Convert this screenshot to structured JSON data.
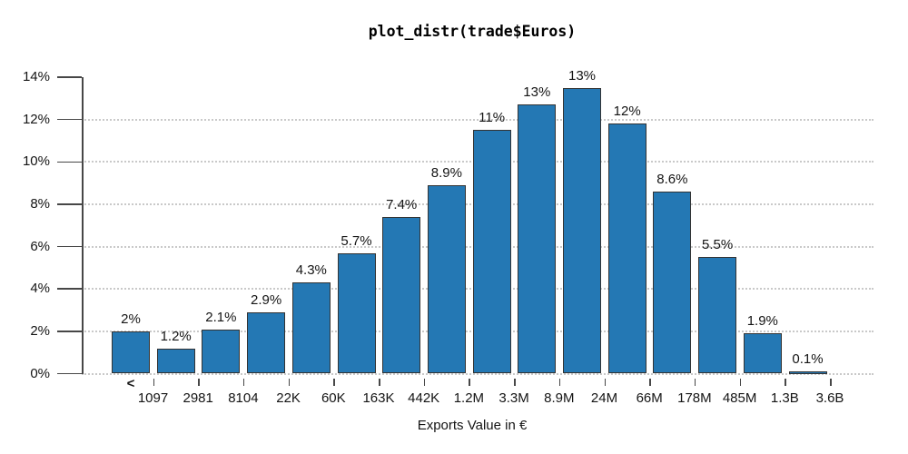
{
  "colors": {
    "bar_fill": "#2478b4",
    "bar_border": "#333333",
    "axis": "#474747",
    "grid": "#c9c9c9",
    "text": "#141414",
    "background": "#ffffff"
  },
  "chart_data": {
    "type": "bar",
    "title": "plot_distr(trade$Euros)",
    "xlabel": "Exports Value in €",
    "ylabel": "",
    "ylim": [
      0,
      14
    ],
    "ytick_values": [
      0,
      2,
      4,
      6,
      8,
      10,
      12,
      14
    ],
    "ytick_labels": [
      "0%",
      "2%",
      "4%",
      "6%",
      "8%",
      "10%",
      "12%",
      "14%"
    ],
    "grid": "horizontal-dotted",
    "legend": "none",
    "first_bar_prefix": "<",
    "categories": [
      "1097",
      "2981",
      "8104",
      "22K",
      "60K",
      "163K",
      "442K",
      "1.2M",
      "3.3M",
      "8.9M",
      "24M",
      "66M",
      "178M",
      "485M",
      "1.3B",
      "3.6B"
    ],
    "values": [
      2.0,
      1.2,
      2.1,
      2.9,
      4.3,
      5.7,
      7.4,
      8.9,
      11.5,
      12.7,
      13.5,
      11.8,
      8.6,
      5.5,
      1.9,
      0.1
    ],
    "bar_labels": [
      "2%",
      "1.2%",
      "2.1%",
      "2.9%",
      "4.3%",
      "5.7%",
      "7.4%",
      "8.9%",
      "11%",
      "13%",
      "13%",
      "12%",
      "8.6%",
      "5.5%",
      "1.9%",
      "0.1%"
    ]
  }
}
